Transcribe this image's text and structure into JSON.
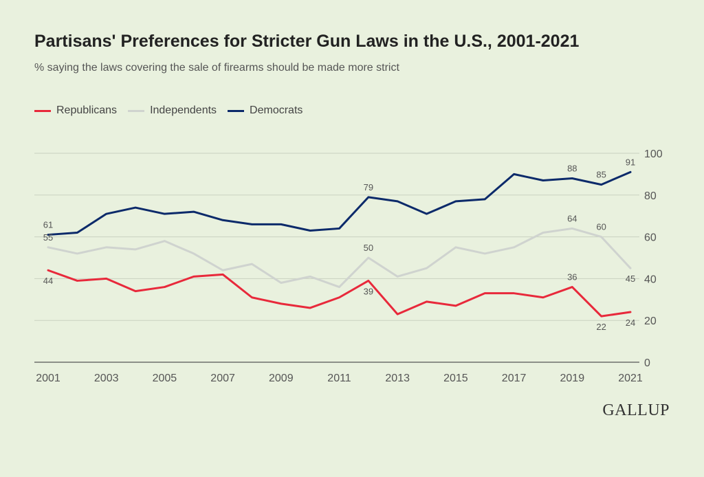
{
  "title": "Partisans' Preferences for Stricter Gun Laws in the U.S., 2001-2021",
  "subtitle": "% saying the laws covering the sale of firearms should be made more strict",
  "brand": "GALLUP",
  "chart_data": {
    "type": "line",
    "title": "Partisans' Preferences for Stricter Gun Laws in the U.S., 2001-2021",
    "xlabel": "",
    "ylabel": "",
    "ylim": [
      0,
      100
    ],
    "yticks": [
      0,
      20,
      40,
      60,
      80,
      100
    ],
    "x": [
      2001,
      2002,
      2003,
      2004,
      2005,
      2006,
      2007,
      2008,
      2009,
      2010,
      2011,
      2012,
      2013,
      2014,
      2015,
      2016,
      2017,
      2018,
      2019,
      2020,
      2021
    ],
    "xticks": [
      2001,
      2003,
      2005,
      2007,
      2009,
      2011,
      2013,
      2015,
      2017,
      2019,
      2021
    ],
    "grid": "horizontal",
    "legend": "top-left",
    "series": [
      {
        "name": "Republicans",
        "color": "#e8293b",
        "values": [
          44,
          39,
          40,
          34,
          36,
          41,
          42,
          31,
          28,
          26,
          31,
          39,
          23,
          29,
          27,
          33,
          33,
          31,
          36,
          22,
          24
        ],
        "labels": [
          {
            "year": 2001,
            "value": 44,
            "text": "44",
            "pos": "below"
          },
          {
            "year": 2012,
            "value": 39,
            "text": "39",
            "pos": "below"
          },
          {
            "year": 2019,
            "value": 36,
            "text": "36",
            "pos": "above"
          },
          {
            "year": 2020,
            "value": 22,
            "text": "22",
            "pos": "below"
          },
          {
            "year": 2021,
            "value": 24,
            "text": "24",
            "pos": "below"
          }
        ]
      },
      {
        "name": "Independents",
        "color": "#cfd3cf",
        "values": [
          55,
          52,
          55,
          54,
          58,
          52,
          44,
          47,
          38,
          41,
          36,
          50,
          41,
          45,
          55,
          52,
          55,
          62,
          64,
          60,
          45
        ],
        "labels": [
          {
            "year": 2001,
            "value": 55,
            "text": "55",
            "pos": "above"
          },
          {
            "year": 2012,
            "value": 50,
            "text": "50",
            "pos": "above"
          },
          {
            "year": 2019,
            "value": 64,
            "text": "64",
            "pos": "above"
          },
          {
            "year": 2020,
            "value": 60,
            "text": "60",
            "pos": "above"
          },
          {
            "year": 2021,
            "value": 45,
            "text": "45",
            "pos": "below"
          }
        ]
      },
      {
        "name": "Democrats",
        "color": "#0c2a6a",
        "values": [
          61,
          62,
          71,
          74,
          71,
          72,
          68,
          66,
          66,
          63,
          64,
          79,
          77,
          71,
          77,
          78,
          90,
          87,
          88,
          85,
          91
        ],
        "labels": [
          {
            "year": 2001,
            "value": 61,
            "text": "61",
            "pos": "above"
          },
          {
            "year": 2012,
            "value": 79,
            "text": "79",
            "pos": "above"
          },
          {
            "year": 2019,
            "value": 88,
            "text": "88",
            "pos": "above"
          },
          {
            "year": 2020,
            "value": 85,
            "text": "85",
            "pos": "above"
          },
          {
            "year": 2021,
            "value": 91,
            "text": "91",
            "pos": "above"
          }
        ]
      }
    ]
  }
}
